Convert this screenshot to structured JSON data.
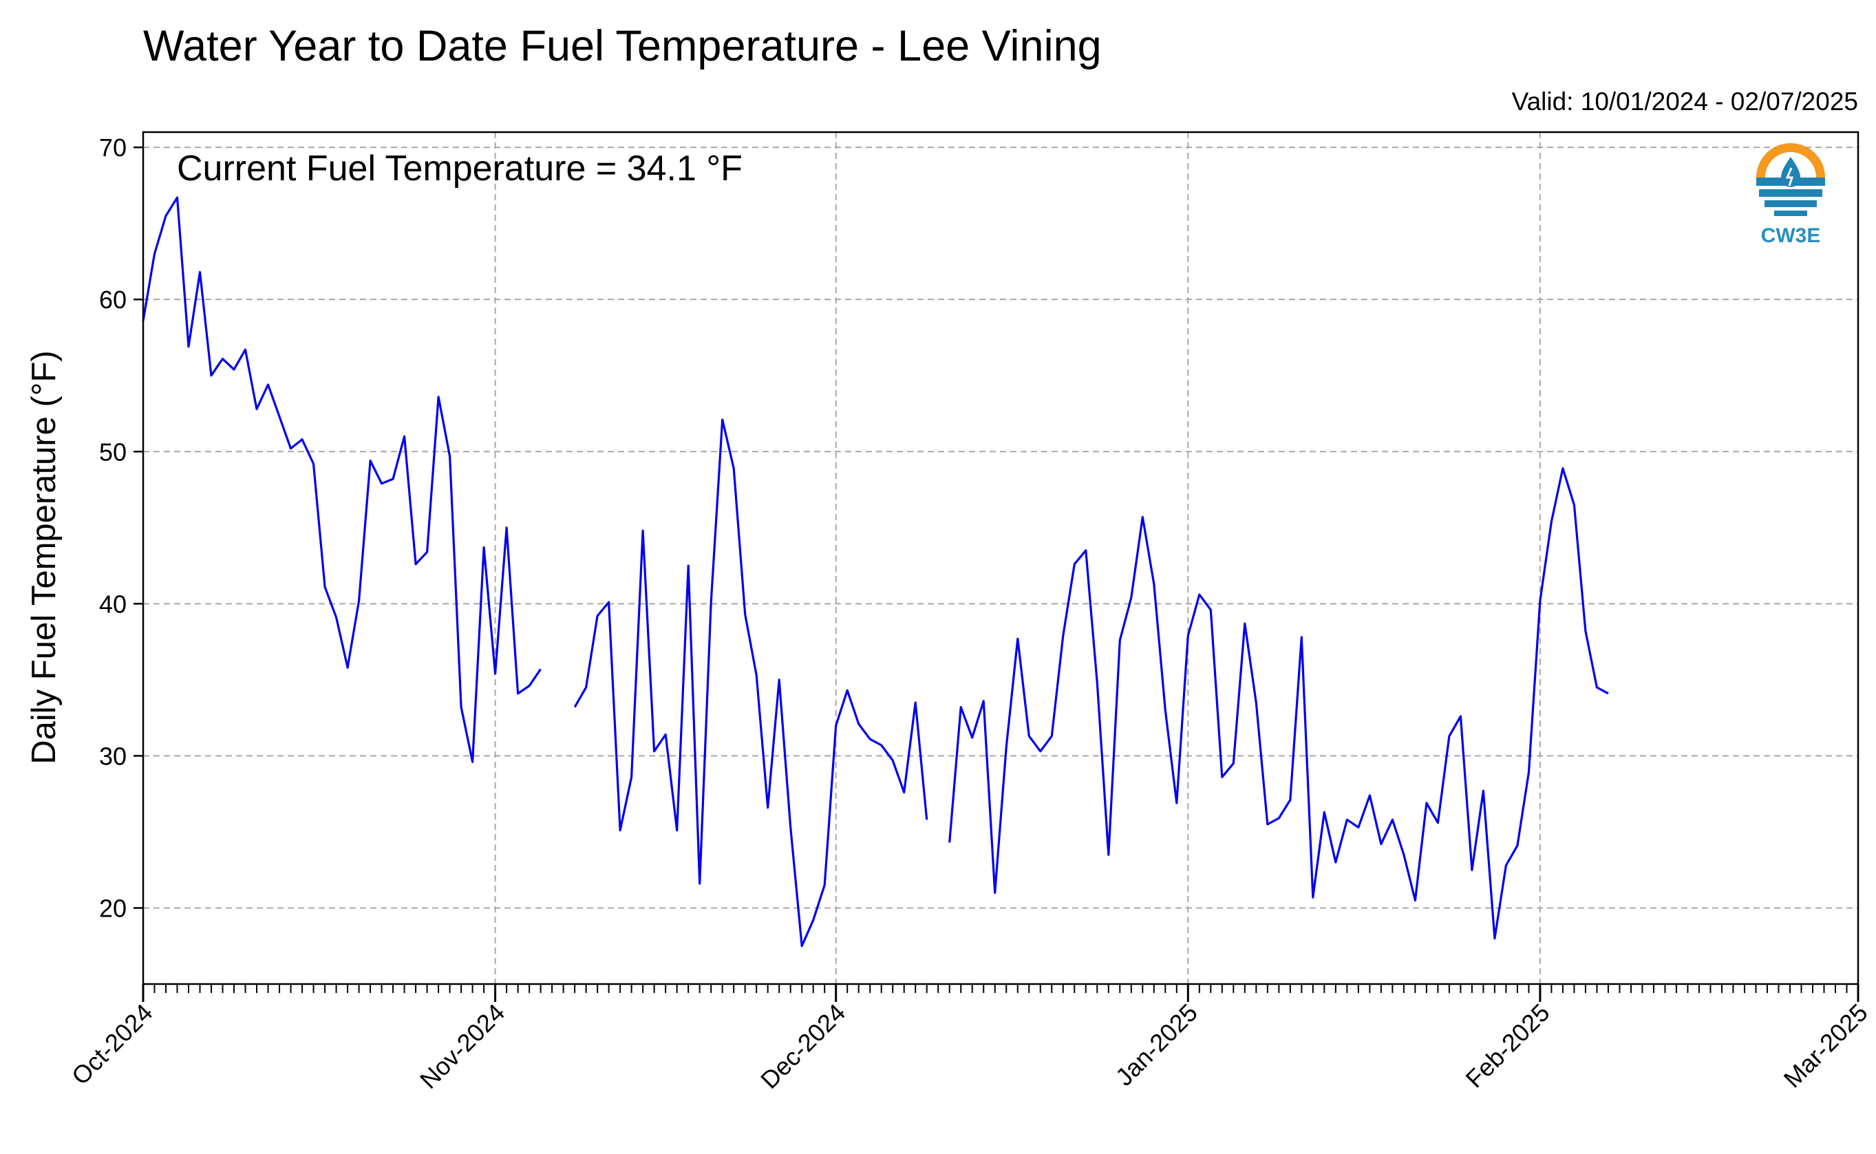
{
  "chart_data": {
    "type": "line",
    "title": "Water Year to Date Fuel Temperature - Lee Vining",
    "subtitle": "Valid: 10/01/2024 - 02/07/2025",
    "annotation": "Current Fuel Temperature = 34.1 °F",
    "ylabel": "Daily Fuel Temperature (°F)",
    "xlabel": "",
    "ylim": [
      15,
      71
    ],
    "y_ticks": [
      20,
      30,
      40,
      50,
      60,
      70
    ],
    "xlim": [
      "2024-10-01",
      "2025-03-01"
    ],
    "x_ticks": [
      {
        "date": "2024-10-01",
        "label": "Oct-2024"
      },
      {
        "date": "2024-11-01",
        "label": "Nov-2024"
      },
      {
        "date": "2024-12-01",
        "label": "Dec-2024"
      },
      {
        "date": "2025-01-01",
        "label": "Jan-2025"
      },
      {
        "date": "2025-02-01",
        "label": "Feb-2025"
      },
      {
        "date": "2025-03-01",
        "label": "Mar-2025"
      }
    ],
    "grid": true,
    "line_color": "#0000ee",
    "start_date": "2024-10-01",
    "values": [
      58.6,
      63.0,
      65.5,
      66.7,
      56.9,
      61.8,
      55.0,
      56.1,
      55.4,
      56.7,
      52.8,
      54.4,
      52.3,
      50.2,
      50.8,
      49.2,
      41.1,
      39.1,
      35.8,
      40.2,
      49.4,
      47.9,
      48.2,
      51.0,
      42.6,
      43.4,
      53.6,
      49.7,
      33.2,
      29.6,
      43.7,
      35.4,
      45.0,
      34.1,
      34.6,
      35.7,
      null,
      null,
      33.2,
      34.5,
      39.2,
      40.1,
      25.1,
      28.6,
      44.8,
      30.3,
      31.4,
      25.1,
      42.5,
      21.6,
      40.1,
      52.1,
      48.9,
      39.3,
      35.3,
      26.6,
      35.0,
      25.3,
      17.5,
      19.2,
      21.5,
      32.0,
      34.3,
      32.1,
      31.1,
      30.7,
      29.7,
      27.6,
      33.5,
      25.8,
      null,
      24.3,
      33.2,
      31.2,
      33.6,
      21.0,
      30.6,
      37.7,
      31.3,
      30.3,
      31.3,
      37.9,
      42.6,
      43.5,
      34.8,
      23.5,
      37.6,
      40.4,
      45.7,
      41.3,
      33.0,
      26.9,
      37.9,
      40.6,
      39.6,
      28.6,
      29.5,
      38.7,
      33.5,
      25.5,
      25.9,
      27.1,
      37.8,
      20.7,
      26.3,
      23.0,
      25.8,
      25.3,
      27.4,
      24.2,
      25.8,
      23.5,
      20.5,
      26.9,
      25.6,
      31.3,
      32.6,
      22.5,
      27.7,
      18.0,
      22.8,
      24.1,
      28.9,
      40.2,
      45.4,
      48.9,
      46.5,
      38.2,
      34.5,
      34.1
    ]
  },
  "logo": {
    "text": "CW3E",
    "colors": {
      "orange": "#f39a1f",
      "blue": "#1f83b4",
      "text": "#2a8fbf"
    }
  }
}
